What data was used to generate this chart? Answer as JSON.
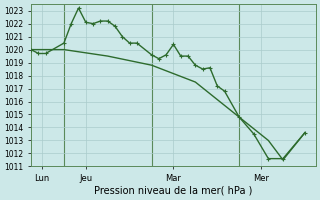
{
  "bg_color": "#cce8e8",
  "grid_color": "#aacccc",
  "line_color": "#2d6b2d",
  "title": "Pression niveau de la mer( hPa )",
  "ylim": [
    1011,
    1023.5
  ],
  "yticks": [
    1011,
    1012,
    1013,
    1014,
    1015,
    1016,
    1017,
    1018,
    1019,
    1020,
    1021,
    1022,
    1023
  ],
  "xlim": [
    0,
    78
  ],
  "xtick_pos": [
    3,
    15,
    39,
    63
  ],
  "xtick_labels": [
    "Lun",
    "Jeu",
    "Mar",
    "Mer"
  ],
  "vline_pos": [
    9,
    33,
    57
  ],
  "line1_x": [
    0,
    2,
    4,
    9,
    11,
    13,
    15,
    17,
    19,
    21,
    23,
    25,
    27,
    29,
    33,
    35,
    37,
    39,
    41,
    43,
    45,
    47,
    49,
    51,
    53,
    57,
    61,
    65,
    69,
    75
  ],
  "line1_y": [
    1020.0,
    1019.7,
    1019.7,
    1020.5,
    1022.0,
    1023.2,
    1022.1,
    1022.0,
    1022.2,
    1022.2,
    1021.8,
    1021.0,
    1020.5,
    1020.5,
    1019.6,
    1019.3,
    1019.6,
    1020.4,
    1019.5,
    1019.5,
    1018.8,
    1018.5,
    1018.6,
    1017.2,
    1016.8,
    1014.8,
    1013.5,
    1011.6,
    1011.6,
    1013.6
  ],
  "line2_x": [
    0,
    9,
    21,
    33,
    45,
    57,
    65,
    69,
    75
  ],
  "line2_y": [
    1020.0,
    1020.0,
    1019.5,
    1018.8,
    1017.5,
    1014.8,
    1013.0,
    1011.5,
    1013.6
  ]
}
